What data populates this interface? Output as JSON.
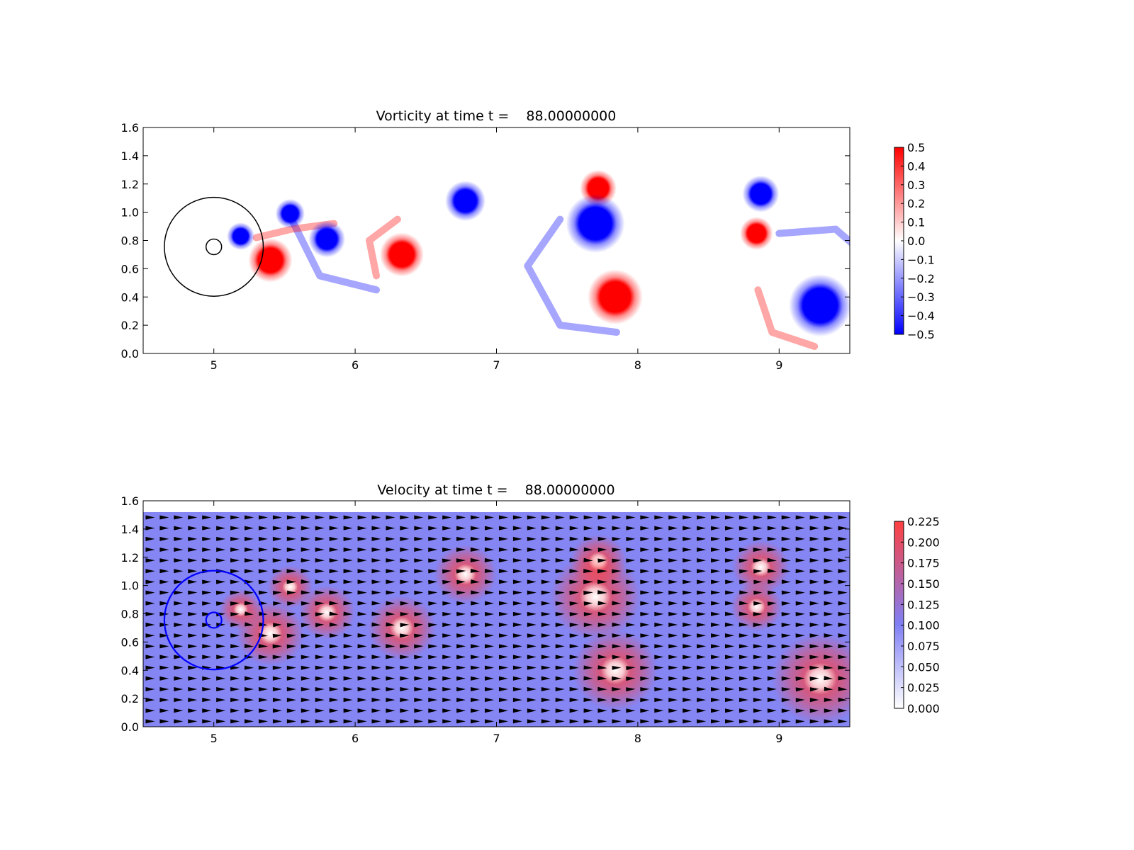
{
  "chart_data": [
    {
      "type": "heatmap",
      "title": "Vorticity at time t =    88.00000000",
      "xlabel": "",
      "ylabel": "",
      "xlim": [
        4.5,
        9.5
      ],
      "ylim": [
        0.0,
        1.6
      ],
      "xticks": [
        "5",
        "6",
        "7",
        "8",
        "9"
      ],
      "yticks": [
        "0.0",
        "0.2",
        "0.4",
        "0.6",
        "0.8",
        "1.0",
        "1.2",
        "1.4",
        "1.6"
      ],
      "colormap": {
        "low": "#0000ff",
        "mid": "#ffffff",
        "high": "#ff0000"
      },
      "clim": [
        -0.5,
        0.5
      ],
      "colorbar_ticks": [
        "0.5",
        "0.4",
        "0.3",
        "0.2",
        "0.1",
        "0.0",
        "−0.1",
        "−0.2",
        "−0.3",
        "−0.4",
        "−0.5"
      ],
      "vortices": [
        {
          "x": 5.4,
          "y": 0.66,
          "r": 0.12,
          "sign": 1
        },
        {
          "x": 5.19,
          "y": 0.83,
          "r": 0.075,
          "sign": -1
        },
        {
          "x": 5.54,
          "y": 0.99,
          "r": 0.08,
          "sign": -1
        },
        {
          "x": 5.8,
          "y": 0.81,
          "r": 0.1,
          "sign": -1
        },
        {
          "x": 6.33,
          "y": 0.7,
          "r": 0.12,
          "sign": 1
        },
        {
          "x": 6.78,
          "y": 1.08,
          "r": 0.11,
          "sign": -1
        },
        {
          "x": 7.72,
          "y": 1.17,
          "r": 0.1,
          "sign": 1
        },
        {
          "x": 7.7,
          "y": 0.92,
          "r": 0.16,
          "sign": -1
        },
        {
          "x": 7.84,
          "y": 0.4,
          "r": 0.15,
          "sign": 1
        },
        {
          "x": 8.87,
          "y": 1.13,
          "r": 0.1,
          "sign": -1
        },
        {
          "x": 8.84,
          "y": 0.85,
          "r": 0.09,
          "sign": 1
        },
        {
          "x": 9.29,
          "y": 0.34,
          "r": 0.17,
          "sign": -1
        }
      ],
      "circles": [
        {
          "cx": 5.0,
          "cy": 0.755,
          "r": 0.35,
          "color": "#000000"
        },
        {
          "cx": 5.0,
          "cy": 0.755,
          "r": 0.055,
          "color": "#000000"
        }
      ]
    },
    {
      "type": "heatmap",
      "title": "Velocity at time t =    88.00000000",
      "xlabel": "",
      "ylabel": "",
      "xlim": [
        4.5,
        9.5
      ],
      "ylim": [
        0.0,
        1.6
      ],
      "xticks": [
        "5",
        "6",
        "7",
        "8",
        "9"
      ],
      "yticks": [
        "0.0",
        "0.2",
        "0.4",
        "0.6",
        "0.8",
        "1.0",
        "1.2",
        "1.4",
        "1.6"
      ],
      "data_ylim": [
        0.0,
        1.52
      ],
      "colormap": {
        "low": "#ffffff",
        "mid": "#7f7ff5",
        "high": "#ff4040"
      },
      "clim": [
        0.0,
        0.23
      ],
      "colorbar_ticks": [
        "0.225",
        "0.200",
        "0.175",
        "0.150",
        "0.125",
        "0.100",
        "0.075",
        "0.050",
        "0.025",
        "0.000"
      ],
      "background_speed": 0.1,
      "vector_field": "quiver",
      "circles": [
        {
          "cx": 5.0,
          "cy": 0.755,
          "r": 0.35,
          "color": "#0000ff"
        },
        {
          "cx": 5.0,
          "cy": 0.755,
          "r": 0.055,
          "color": "#0000ff"
        }
      ]
    }
  ]
}
